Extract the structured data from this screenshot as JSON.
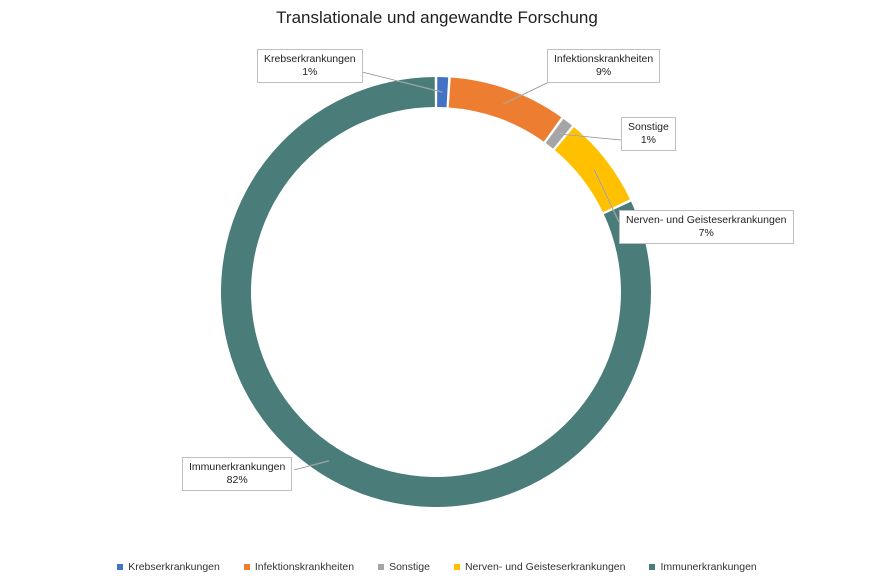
{
  "chart_data": {
    "type": "pie",
    "donut": true,
    "title": "Translationale und angewandte Forschung",
    "legend_position": "bottom",
    "slices": [
      {
        "label": "Krebserkrankungen",
        "value": 1,
        "display": "1%",
        "color": "#4472c4"
      },
      {
        "label": "Infektionskrankheiten",
        "value": 9,
        "display": "9%",
        "color": "#ed7d31"
      },
      {
        "label": "Sonstige",
        "value": 1,
        "display": "1%",
        "color": "#a5a5a5"
      },
      {
        "label": "Nerven- und Geisteserkrankungen",
        "value": 7,
        "display": "7%",
        "color": "#ffc000"
      },
      {
        "label": "Immunerkrankungen",
        "value": 82,
        "display": "82%",
        "color": "#4a7c7a"
      }
    ]
  }
}
